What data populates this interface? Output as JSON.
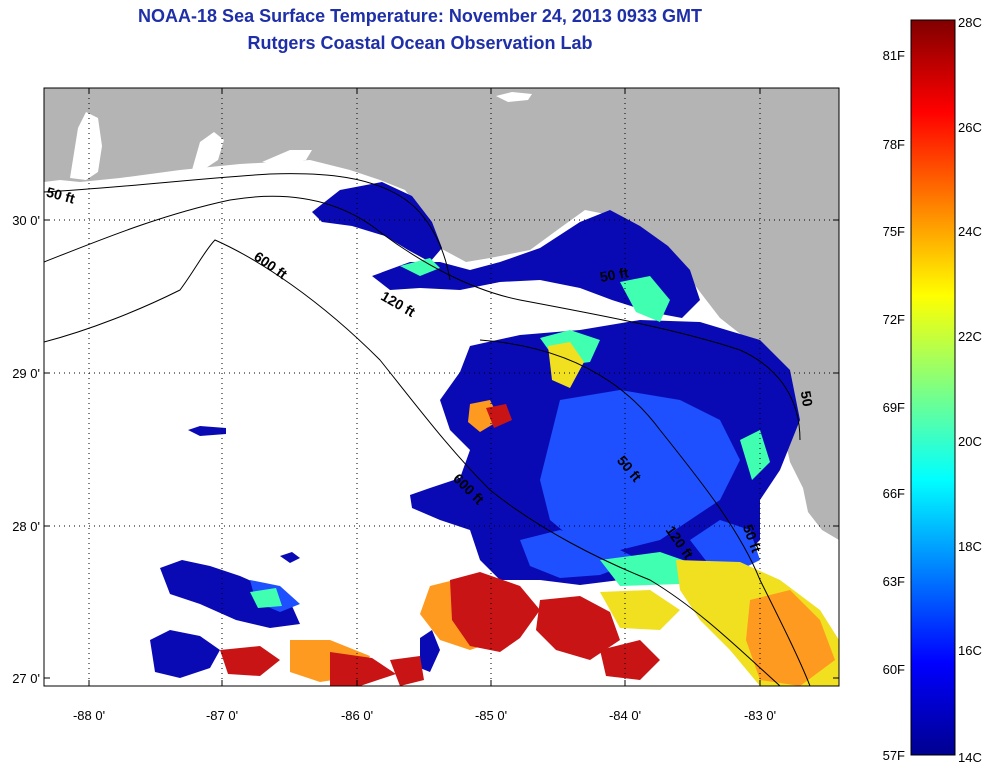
{
  "title": {
    "line1": "NOAA-18 Sea Surface Temperature:  November 24, 2013 0933 GMT",
    "line2": "Rutgers Coastal Ocean Observation Lab"
  },
  "map": {
    "lon_ticks": [
      "-88 0'",
      "-87 0'",
      "-86 0'",
      "-85 0'",
      "-84 0'",
      "-83 0'"
    ],
    "lat_ticks": [
      "30 0'",
      "29 0'",
      "28 0'",
      "27 0'"
    ],
    "contour_labels": [
      "50 ft",
      "600 ft",
      "120 ft",
      "600 ft",
      "50 ft",
      "50 ft",
      "120 ft",
      "50 ft",
      "50"
    ],
    "colors": {
      "land": "#b4b4b4",
      "no_data": "#ffffff",
      "coast": "#000000"
    }
  },
  "colorbar": {
    "fahrenheit_labels": [
      "81F",
      "78F",
      "75F",
      "72F",
      "69F",
      "66F",
      "63F",
      "60F",
      "57F"
    ],
    "celsius_labels": [
      "28C",
      "26C",
      "24C",
      "22C",
      "20C",
      "18C",
      "16C",
      "14C"
    ],
    "colormap": [
      "#00008f",
      "#0000ff",
      "#0080ff",
      "#00ffff",
      "#80ff80",
      "#ffff00",
      "#ff8000",
      "#ff0000",
      "#800000"
    ]
  }
}
